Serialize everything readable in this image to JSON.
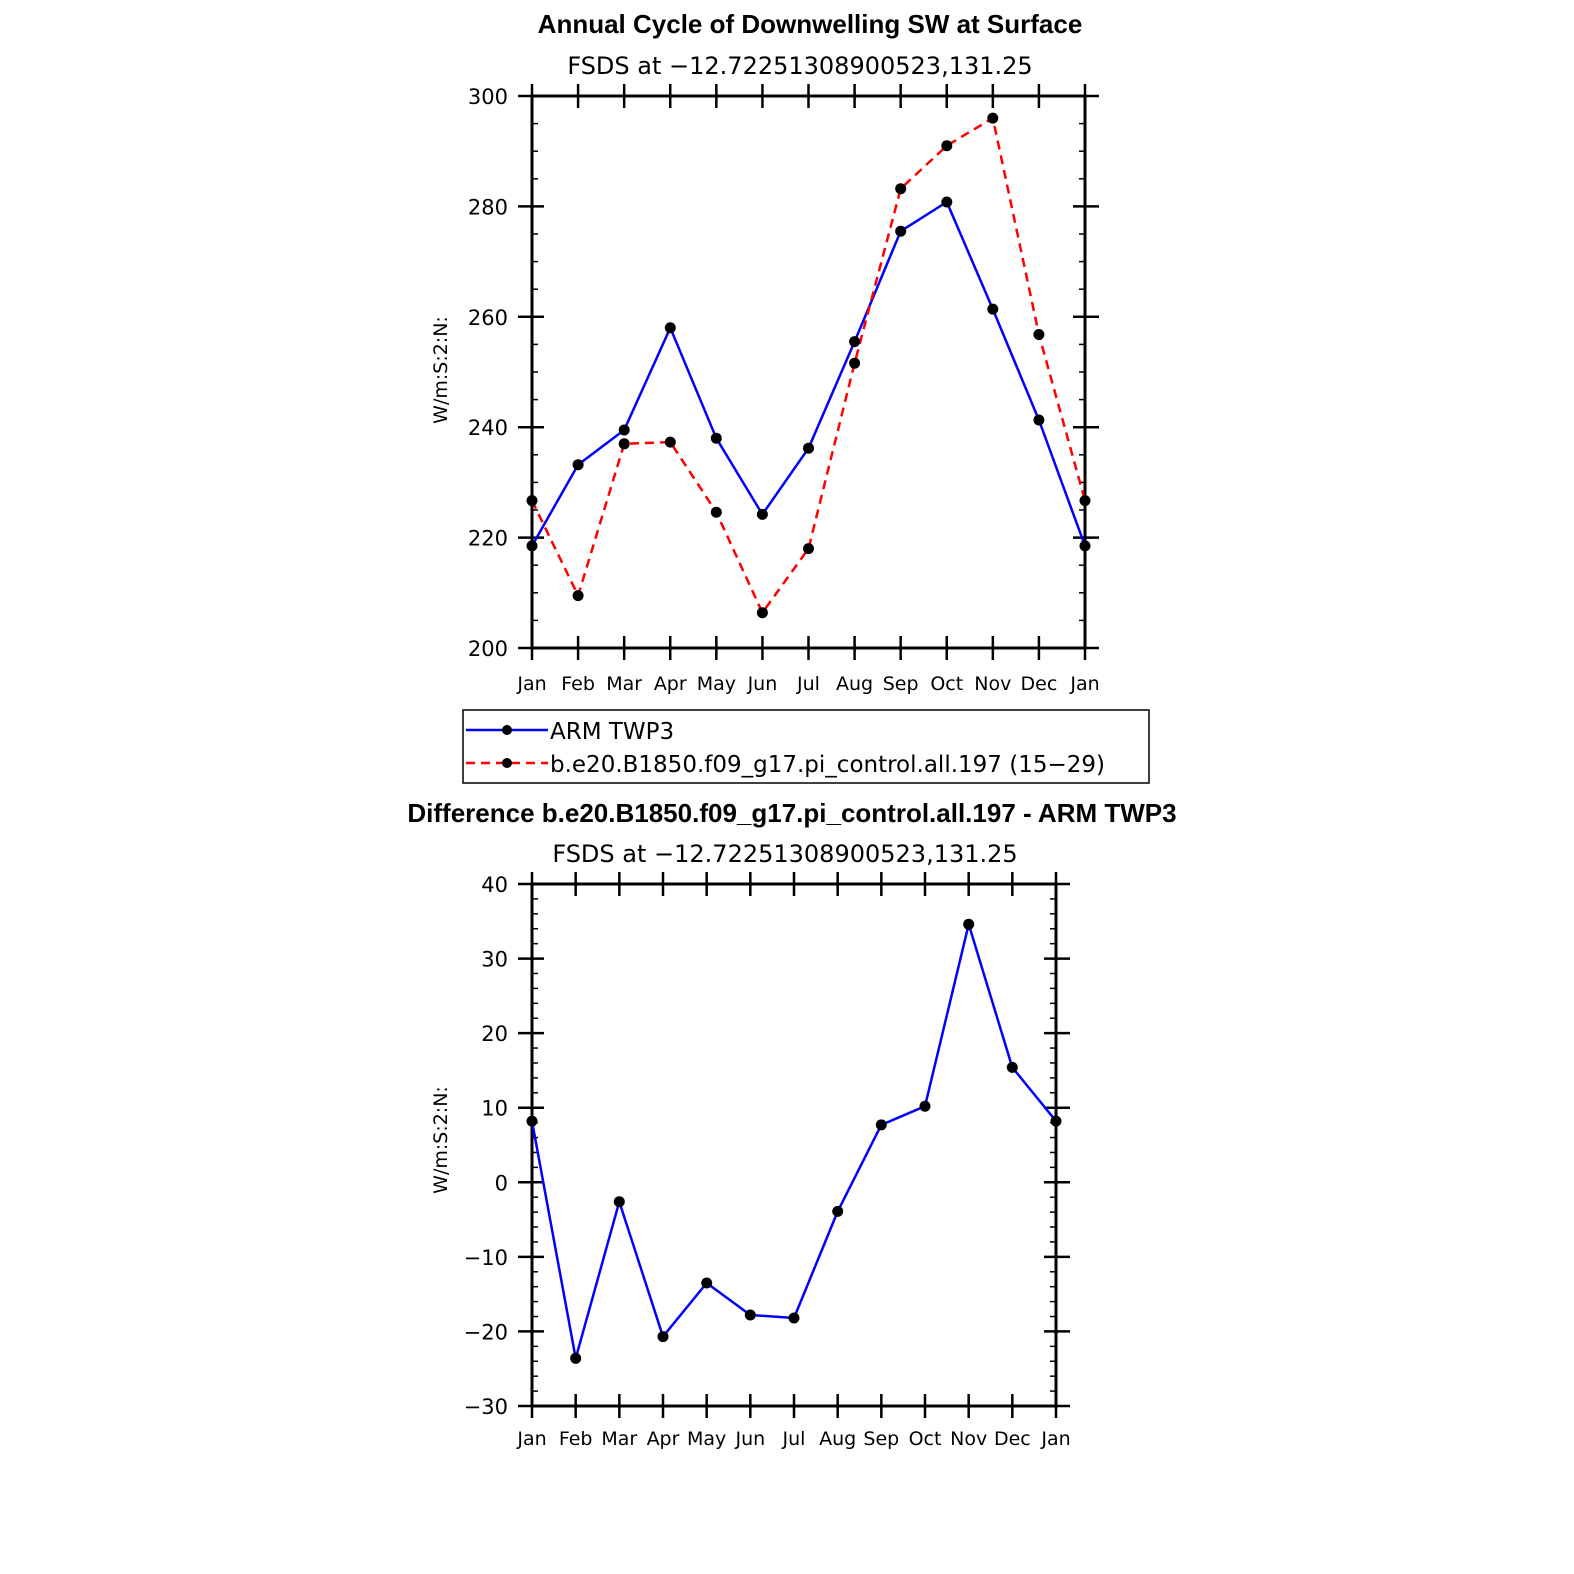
{
  "chart_data": [
    {
      "type": "line",
      "title": "Annual Cycle of Downwelling SW at Surface",
      "subtitle": "FSDS at −12.72251308900523,131.25",
      "ylabel": "W/m:S:2:N:",
      "ylim": [
        200,
        300
      ],
      "yticks": [
        200,
        220,
        240,
        260,
        280,
        300
      ],
      "categories": [
        "Jan",
        "Feb",
        "Mar",
        "Apr",
        "May",
        "Jun",
        "Jul",
        "Aug",
        "Sep",
        "Oct",
        "Nov",
        "Dec",
        "Jan"
      ],
      "series": [
        {
          "name": "ARM TWP3",
          "color": "#0000ff",
          "dash": "solid",
          "values": [
            218.5,
            233.2,
            239.5,
            258.0,
            238.0,
            224.2,
            236.2,
            255.5,
            275.5,
            280.8,
            261.4,
            241.3,
            218.5
          ]
        },
        {
          "name": "b.e20.B1850.f09_g17.pi_control.all.197 (15−29)",
          "color": "#ff0000",
          "dash": "dashed",
          "values": [
            226.7,
            209.5,
            237.0,
            237.3,
            224.6,
            206.4,
            218.0,
            251.6,
            283.2,
            291.0,
            296.0,
            256.8,
            226.7
          ]
        }
      ]
    },
    {
      "type": "line",
      "title": "Difference b.e20.B1850.f09_g17.pi_control.all.197 - ARM TWP3",
      "subtitle": "FSDS at −12.72251308900523,131.25",
      "ylabel": "W/m:S:2:N:",
      "ylim": [
        -30,
        40
      ],
      "yticks": [
        -30,
        -20,
        -10,
        0,
        10,
        20,
        30,
        40
      ],
      "ytick_labels": [
        "−30",
        "−20",
        "−10",
        "0",
        "10",
        "20",
        "30",
        "40"
      ],
      "categories": [
        "Jan",
        "Feb",
        "Mar",
        "Apr",
        "May",
        "Jun",
        "Jul",
        "Aug",
        "Sep",
        "Oct",
        "Nov",
        "Dec",
        "Jan"
      ],
      "series": [
        {
          "name": "difference",
          "color": "#0000ff",
          "dash": "solid",
          "values": [
            8.2,
            -23.6,
            -2.6,
            -20.7,
            -13.5,
            -17.8,
            -18.2,
            -3.9,
            7.7,
            10.2,
            34.6,
            15.4,
            8.2
          ]
        }
      ]
    }
  ]
}
